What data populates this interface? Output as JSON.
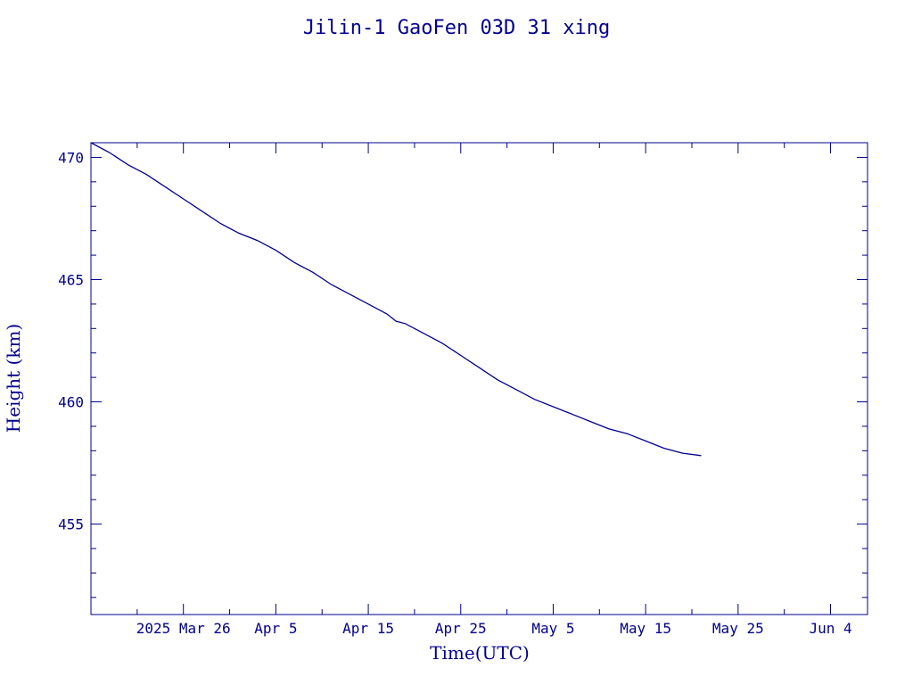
{
  "colors": {
    "foreground": "#00008b",
    "background": "#ffffff"
  },
  "chart_data": {
    "type": "line",
    "title": "Jilin-1 GaoFen 03D 31 xing",
    "xlabel": "Time(UTC)",
    "ylabel": "Height (km)",
    "x_tick_labels": [
      "2025 Mar 26",
      "Apr  5",
      "Apr 15",
      "Apr 25",
      "May  5",
      "May 15",
      "May 25",
      "Jun  4"
    ],
    "x_ticks": [
      "2025-03-26",
      "2025-04-05",
      "2025-04-15",
      "2025-04-25",
      "2025-05-05",
      "2025-05-15",
      "2025-05-25",
      "2025-06-04"
    ],
    "xlim": [
      "2025-03-16",
      "2025-06-08"
    ],
    "y_tick_labels": [
      "455",
      "460",
      "465",
      "470"
    ],
    "ylim": [
      451.3,
      470.6
    ],
    "grid": false,
    "series": [
      {
        "x": [
          "2025-03-16",
          "2025-03-18",
          "2025-03-20",
          "2025-03-22",
          "2025-03-24",
          "2025-03-26",
          "2025-03-28",
          "2025-03-30",
          "2025-04-01",
          "2025-04-03",
          "2025-04-05",
          "2025-04-07",
          "2025-04-09",
          "2025-04-11",
          "2025-04-13",
          "2025-04-15",
          "2025-04-17",
          "2025-04-18",
          "2025-04-19",
          "2025-04-21",
          "2025-04-23",
          "2025-04-25",
          "2025-04-27",
          "2025-04-29",
          "2025-05-01",
          "2025-05-03",
          "2025-05-05",
          "2025-05-07",
          "2025-05-09",
          "2025-05-11",
          "2025-05-13",
          "2025-05-15",
          "2025-05-17",
          "2025-05-19",
          "2025-05-21"
        ],
        "y": [
          470.6,
          470.2,
          469.7,
          469.3,
          468.8,
          468.3,
          467.8,
          467.3,
          466.9,
          466.6,
          466.2,
          465.7,
          465.3,
          464.8,
          464.4,
          464.0,
          463.6,
          463.3,
          463.2,
          462.8,
          462.4,
          461.9,
          461.4,
          460.9,
          460.5,
          460.1,
          459.8,
          459.5,
          459.2,
          458.9,
          458.7,
          458.4,
          458.1,
          457.9,
          457.8
        ]
      }
    ]
  }
}
